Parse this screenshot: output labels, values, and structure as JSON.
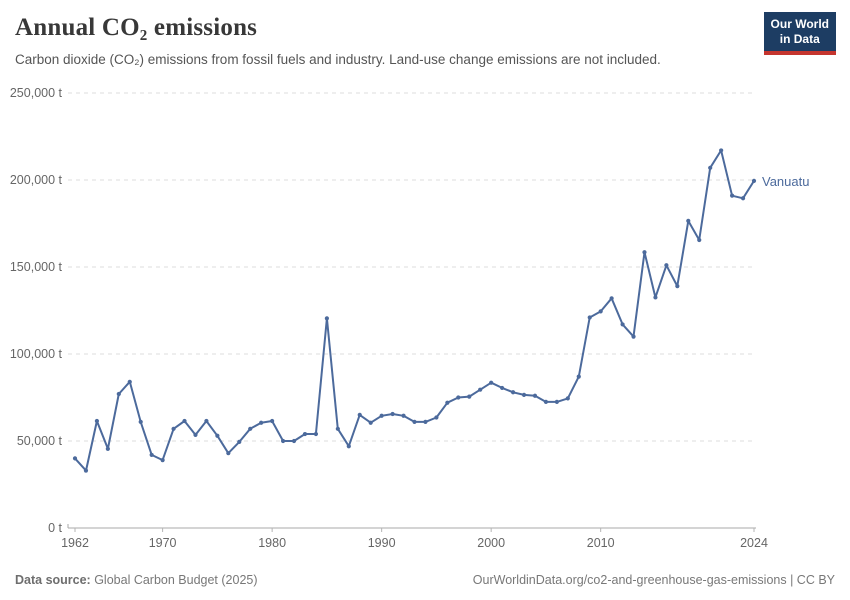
{
  "header": {
    "title": "Annual CO₂ emissions",
    "subtitle": "Carbon dioxide (CO₂) emissions from fossil fuels and industry. Land-use change emissions are not included."
  },
  "logo": {
    "line1": "Our World",
    "line2": "in Data",
    "bg_color": "#1d3d63",
    "accent_color": "#c5352e"
  },
  "chart_data": {
    "type": "line",
    "title": "Annual CO₂ emissions",
    "unit": "t",
    "xlim": [
      1962,
      2024
    ],
    "ylim": [
      0,
      250000
    ],
    "grid": "dashed-horizontal",
    "legend_position": "end-of-line-label",
    "x_ticks": [
      1962,
      1970,
      1980,
      1990,
      2000,
      2010,
      2024
    ],
    "x_tick_labels": [
      "1962",
      "1970",
      "1980",
      "1990",
      "2000",
      "2010",
      "2024"
    ],
    "y_ticks": [
      0,
      50000,
      100000,
      150000,
      200000,
      250000
    ],
    "y_tick_labels": [
      "0 t",
      "50,000 t",
      "100,000 t",
      "150,000 t",
      "200,000 t",
      "250,000 t"
    ],
    "series": [
      {
        "name": "Vanuatu",
        "color": "#4C6A9C",
        "years": [
          1962,
          1963,
          1964,
          1965,
          1966,
          1967,
          1968,
          1969,
          1970,
          1971,
          1972,
          1973,
          1974,
          1975,
          1976,
          1977,
          1978,
          1979,
          1980,
          1981,
          1982,
          1983,
          1984,
          1985,
          1986,
          1987,
          1988,
          1989,
          1990,
          1991,
          1992,
          1993,
          1994,
          1995,
          1996,
          1997,
          1998,
          1999,
          2000,
          2001,
          2002,
          2003,
          2004,
          2005,
          2006,
          2007,
          2008,
          2009,
          2010,
          2011,
          2012,
          2013,
          2014,
          2015,
          2016,
          2017,
          2018,
          2019,
          2020,
          2021,
          2022,
          2023,
          2024
        ],
        "values": [
          40000,
          33000,
          61500,
          45500,
          77000,
          84000,
          61000,
          42000,
          39000,
          57000,
          61500,
          53500,
          61500,
          53000,
          43000,
          49500,
          57000,
          60500,
          61500,
          50000,
          50000,
          54000,
          54000,
          120500,
          57000,
          47000,
          65000,
          60500,
          64500,
          65500,
          64500,
          61000,
          61000,
          63500,
          72000,
          75000,
          75500,
          79500,
          83500,
          80500,
          78000,
          76500,
          76000,
          72500,
          72500,
          74500,
          87000,
          121000,
          124500,
          132000,
          117000,
          110000,
          158500,
          132500,
          151000,
          139000,
          176500,
          165500,
          207000,
          217000,
          191000,
          189500,
          199500
        ]
      }
    ]
  },
  "footer": {
    "source_label": "Data source:",
    "source_value": " Global Carbon Budget (2025)",
    "credit": "OurWorldinData.org/co2-and-greenhouse-gas-emissions | CC BY"
  }
}
